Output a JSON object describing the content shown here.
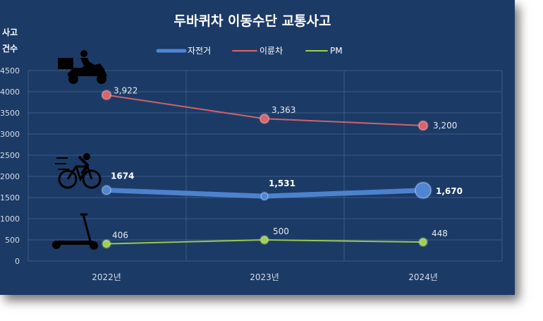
{
  "chart_data": {
    "type": "line",
    "title": "두바퀴차 이동수단 교통사고",
    "ylabel_line1": "사고",
    "ylabel_line2": "건수",
    "categories": [
      "2022년",
      "2023년",
      "2024년"
    ],
    "ylim": [
      0,
      4500
    ],
    "yticks": [
      0,
      500,
      1000,
      1500,
      2000,
      2500,
      3000,
      3500,
      4000,
      4500
    ],
    "ytick_labels": [
      "0",
      "500",
      "1000",
      "1500",
      "2000",
      "2500",
      "3000",
      "3500",
      "4000",
      "4500"
    ],
    "grid": true,
    "legend_position": "top-center",
    "series": [
      {
        "name": "자전거",
        "values": [
          1674,
          1531,
          1670
        ],
        "labels": [
          "1674",
          "1,531",
          "1,670"
        ],
        "color": "#4f86d3"
      },
      {
        "name": "이륜차",
        "values": [
          3922,
          3363,
          3200
        ],
        "labels": [
          "3,922",
          "3,363",
          "3,200"
        ],
        "color": "#d9646c"
      },
      {
        "name": "PM",
        "values": [
          406,
          500,
          448
        ],
        "labels": [
          "406",
          "500",
          "448"
        ],
        "color": "#9ed04a"
      }
    ],
    "icons": [
      "motorcycle-icon",
      "bicycle-icon",
      "scooter-icon"
    ]
  }
}
